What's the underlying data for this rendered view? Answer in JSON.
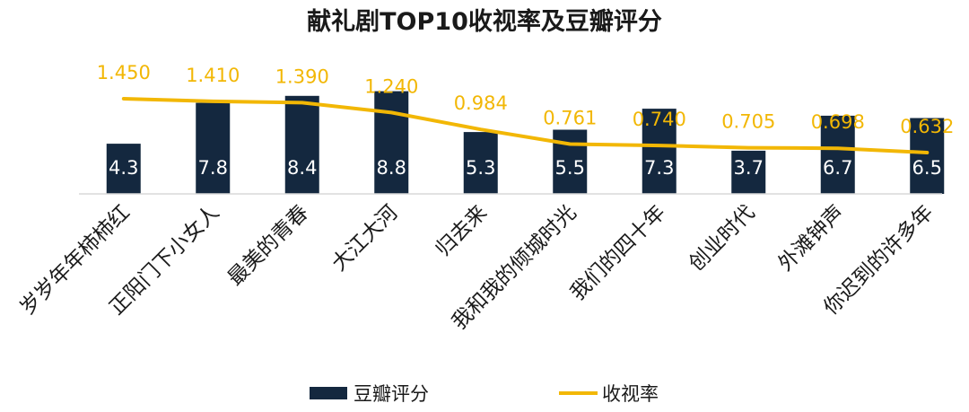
{
  "chart_data": {
    "type": "bar",
    "title": "献礼剧TOP10收视率及豆瓣评分",
    "categories": [
      "岁岁年年柿柿红",
      "正阳门下小女人",
      "最美的青春",
      "大江大河",
      "归去来",
      "我和我的倾城时光",
      "我们的四十年",
      "创业时代",
      "外滩钟声",
      "你迟到的许多年"
    ],
    "series": [
      {
        "name": "豆瓣评分",
        "type": "bar",
        "color": "#14283f",
        "values": [
          4.3,
          7.8,
          8.4,
          8.8,
          5.3,
          5.5,
          7.3,
          3.7,
          6.7,
          6.5
        ],
        "labels": [
          "4.3",
          "7.8",
          "8.4",
          "8.8",
          "5.3",
          "5.5",
          "7.3",
          "3.7",
          "6.7",
          "6.5"
        ]
      },
      {
        "name": "收视率",
        "type": "line",
        "color": "#f2b705",
        "values": [
          1.45,
          1.41,
          1.39,
          1.24,
          0.984,
          0.761,
          0.74,
          0.705,
          0.698,
          0.632
        ],
        "labels": [
          "1.450",
          "1.410",
          "1.390",
          "1.240",
          "0.984",
          "0.761",
          "0.740",
          "0.705",
          "0.698",
          "0.632"
        ]
      }
    ],
    "legend_position": "bottom",
    "grid": false
  }
}
